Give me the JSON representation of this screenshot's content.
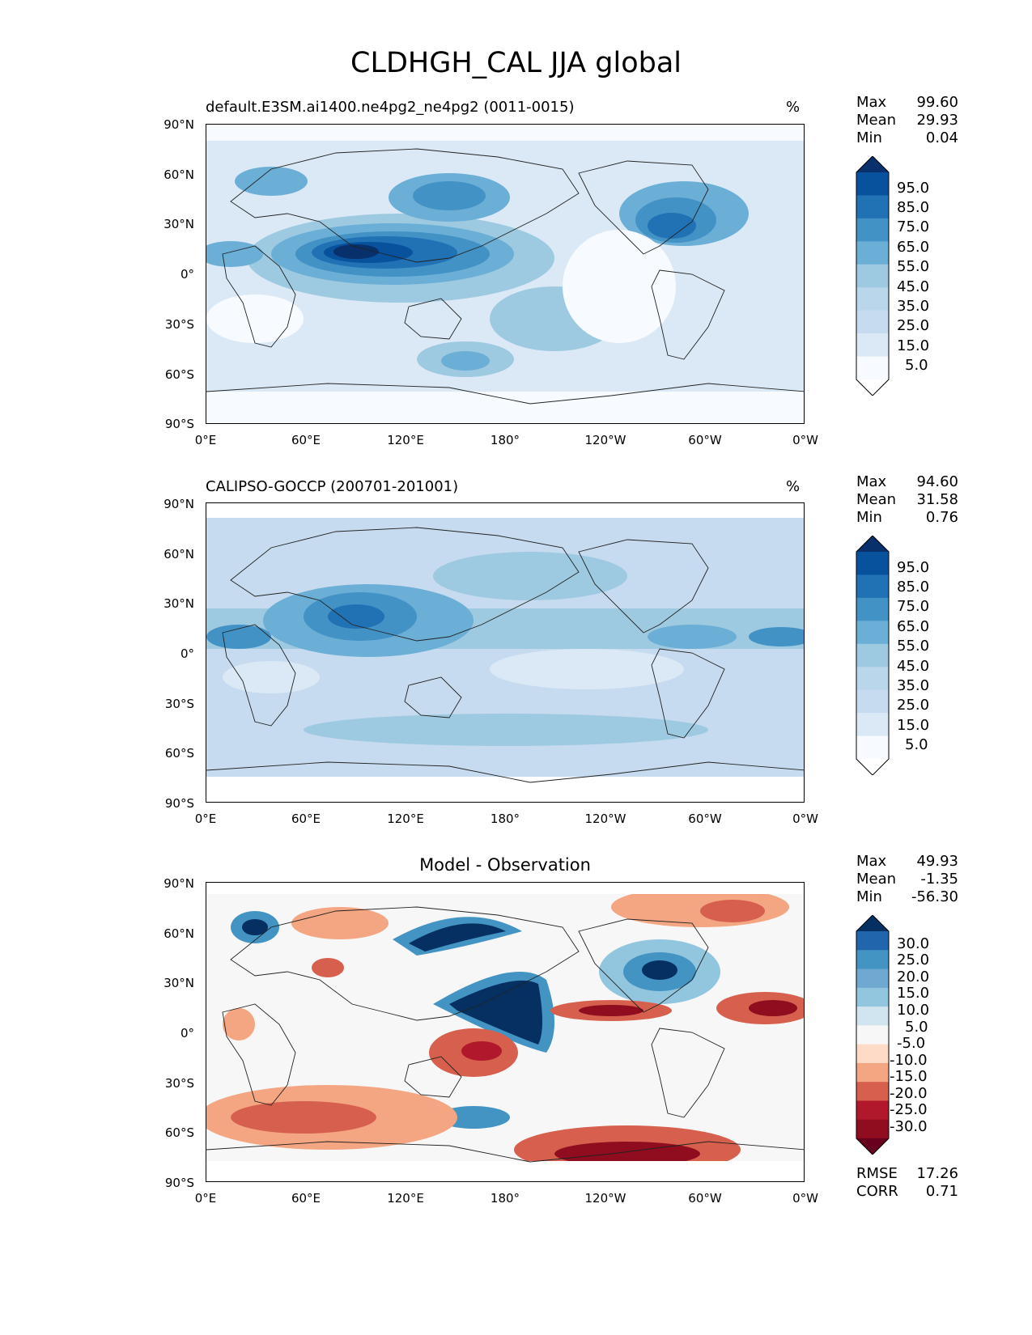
{
  "title": "CLDHGH_CAL JJA global",
  "axes": {
    "lat_ticks": [
      "90°N",
      "60°N",
      "30°N",
      "0°",
      "30°S",
      "60°S",
      "90°S"
    ],
    "lon_ticks": [
      "0°E",
      "60°E",
      "120°E",
      "180°",
      "120°W",
      "60°W",
      "0°W"
    ]
  },
  "panels": [
    {
      "id": "model",
      "title": "default.E3SM.ai1400.ne4pg2_ne4pg2 (0011-0015)",
      "units": "%",
      "stats": {
        "max_label": "Max",
        "max": "99.60",
        "mean_label": "Mean",
        "mean": "29.93",
        "min_label": "Min",
        "min": "0.04"
      },
      "colorbar": {
        "labels": [
          "95.0",
          "85.0",
          "75.0",
          "65.0",
          "55.0",
          "45.0",
          "35.0",
          "25.0",
          "15.0",
          "5.0"
        ],
        "colors": [
          "#08306b",
          "#08519c",
          "#2171b5",
          "#4292c6",
          "#6baed6",
          "#9ecae1",
          "#b9d6ea",
          "#c6dbef",
          "#dbe9f6",
          "#f7fbff",
          "#ffffff"
        ]
      }
    },
    {
      "id": "obs",
      "title": "CALIPSO-GOCCP (200701-201001)",
      "units": "%",
      "stats": {
        "max_label": "Max",
        "max": "94.60",
        "mean_label": "Mean",
        "mean": "31.58",
        "min_label": "Min",
        "min": "0.76"
      },
      "colorbar": {
        "labels": [
          "95.0",
          "85.0",
          "75.0",
          "65.0",
          "55.0",
          "45.0",
          "35.0",
          "25.0",
          "15.0",
          "5.0"
        ],
        "colors": [
          "#08306b",
          "#08519c",
          "#2171b5",
          "#4292c6",
          "#6baed6",
          "#9ecae1",
          "#b9d6ea",
          "#c6dbef",
          "#dbe9f6",
          "#f7fbff",
          "#ffffff"
        ]
      }
    },
    {
      "id": "diff",
      "title": "Model - Observation",
      "units": "",
      "stats": {
        "max_label": "Max",
        "max": "49.93",
        "mean_label": "Mean",
        "mean": "-1.35",
        "min_label": "Min",
        "min": "-56.30"
      },
      "colorbar": {
        "labels": [
          "30.0",
          "25.0",
          "20.0",
          "15.0",
          "10.0",
          "5.0",
          "-5.0",
          "-10.0",
          "-15.0",
          "-20.0",
          "-25.0",
          "-30.0"
        ],
        "colors": [
          "#053061",
          "#2166ac",
          "#4393c3",
          "#6fa8d0",
          "#92c5de",
          "#d1e5f0",
          "#f7f7f7",
          "#fddbc7",
          "#f4a582",
          "#d6604d",
          "#b2182b",
          "#8f0d1e",
          "#67001f"
        ]
      },
      "footer": {
        "rmse_label": "RMSE",
        "rmse": "17.26",
        "corr_label": "CORR",
        "corr": "0.71"
      }
    }
  ]
}
